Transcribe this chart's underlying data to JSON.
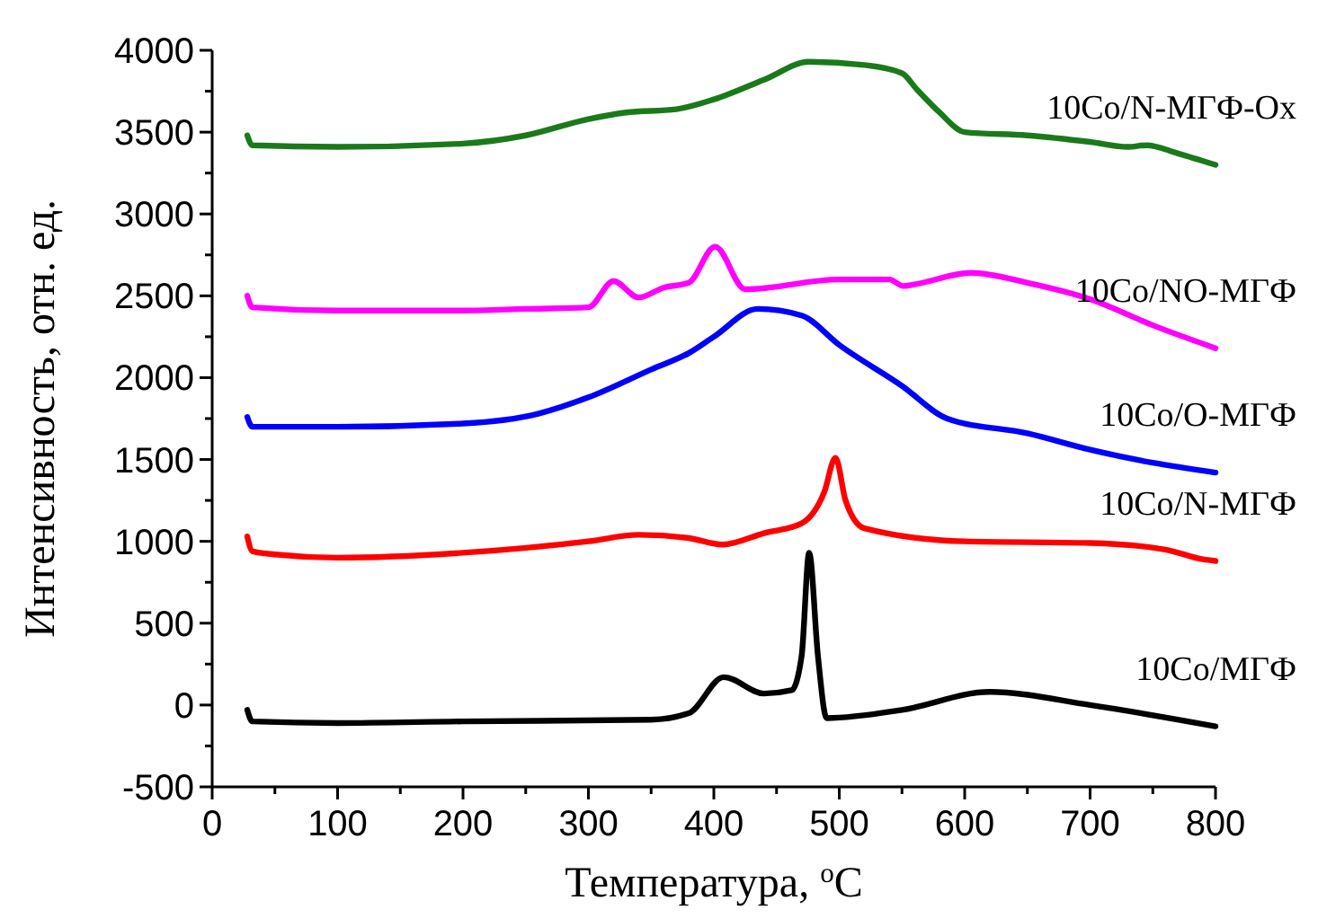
{
  "chart_data": {
    "type": "line",
    "xlabel": "Температура, $^{o}$C",
    "ylabel": "Интенсивность, отн. ед.",
    "xlim": [
      0,
      800
    ],
    "ylim": [
      -500,
      4000
    ],
    "xticks": [
      0,
      {
        "value": 50,
        "label": null
      },
      100,
      {
        "value": 150,
        "label": null
      },
      200,
      {
        "value": 250,
        "label": null
      },
      300,
      {
        "value": 350,
        "label": null
      },
      400,
      {
        "value": 450,
        "label": null
      },
      500,
      {
        "value": 550,
        "label": null
      },
      600,
      {
        "value": 650,
        "label": null
      },
      700,
      {
        "value": 750,
        "label": null
      },
      800
    ],
    "yticks": [
      -500,
      {
        "value": -250,
        "label": null
      },
      0,
      {
        "value": 250,
        "label": null
      },
      500,
      {
        "value": 750,
        "label": null
      },
      1000,
      {
        "value": 1250,
        "label": null
      },
      1500,
      {
        "value": 1750,
        "label": null
      },
      2000,
      {
        "value": 2250,
        "label": null
      },
      2500,
      {
        "value": 2750,
        "label": null
      },
      3000,
      {
        "value": 3250,
        "label": null
      },
      3500,
      {
        "value": 3750,
        "label": null
      },
      4000
    ],
    "grid": false,
    "marker": "none",
    "line_style": "solid",
    "series": [
      {
        "name": "10Co/N-МГФ-Ox",
        "color": "#1a7a1a",
        "x": [
          28,
          32,
          100,
          200,
          250,
          300,
          330,
          370,
          400,
          440,
          476,
          520,
          550,
          562,
          580,
          600,
          650,
          700,
          730,
          745,
          770,
          800
        ],
        "values": [
          3480,
          3420,
          3410,
          3430,
          3480,
          3580,
          3620,
          3640,
          3700,
          3820,
          3930,
          3910,
          3860,
          3760,
          3620,
          3500,
          3480,
          3440,
          3410,
          3420,
          3370,
          3300
        ]
      },
      {
        "name": "10Co/NO-МГФ",
        "color": "#ff00ff",
        "x": [
          28,
          32,
          100,
          200,
          250,
          300,
          320,
          340,
          360,
          380,
          401,
          425,
          500,
          540,
          551,
          560,
          605,
          650,
          700,
          750,
          800
        ],
        "values": [
          2500,
          2430,
          2410,
          2410,
          2420,
          2430,
          2590,
          2490,
          2550,
          2580,
          2800,
          2540,
          2600,
          2600,
          2560,
          2570,
          2640,
          2580,
          2480,
          2320,
          2180
        ]
      },
      {
        "name": "10Co/O-МГФ",
        "color": "#0000ff",
        "x": [
          28,
          32,
          100,
          200,
          260,
          300,
          350,
          380,
          400,
          435,
          470,
          500,
          550,
          586,
          650,
          700,
          750,
          800
        ],
        "values": [
          1760,
          1700,
          1700,
          1720,
          1780,
          1880,
          2050,
          2150,
          2250,
          2420,
          2380,
          2200,
          1950,
          1750,
          1660,
          1560,
          1480,
          1420
        ]
      },
      {
        "name": "10Co/N-МГФ",
        "color": "#ff0000",
        "x": [
          28,
          32,
          50,
          100,
          200,
          300,
          340,
          380,
          407,
          440,
          470,
          488,
          497,
          505,
          520,
          600,
          700,
          760,
          790,
          800
        ],
        "values": [
          1030,
          940,
          920,
          900,
          930,
          1000,
          1040,
          1020,
          980,
          1050,
          1110,
          1300,
          1510,
          1250,
          1080,
          1000,
          990,
          950,
          890,
          880
        ]
      },
      {
        "name": "10Co/МГФ",
        "color": "#000000",
        "x": [
          28,
          32,
          100,
          200,
          350,
          380,
          408,
          440,
          462,
          470,
          476,
          483,
          490,
          550,
          620,
          700,
          800
        ],
        "values": [
          -30,
          -100,
          -110,
          -100,
          -90,
          -50,
          170,
          70,
          90,
          300,
          930,
          300,
          -80,
          -30,
          80,
          0,
          -130
        ]
      }
    ]
  }
}
